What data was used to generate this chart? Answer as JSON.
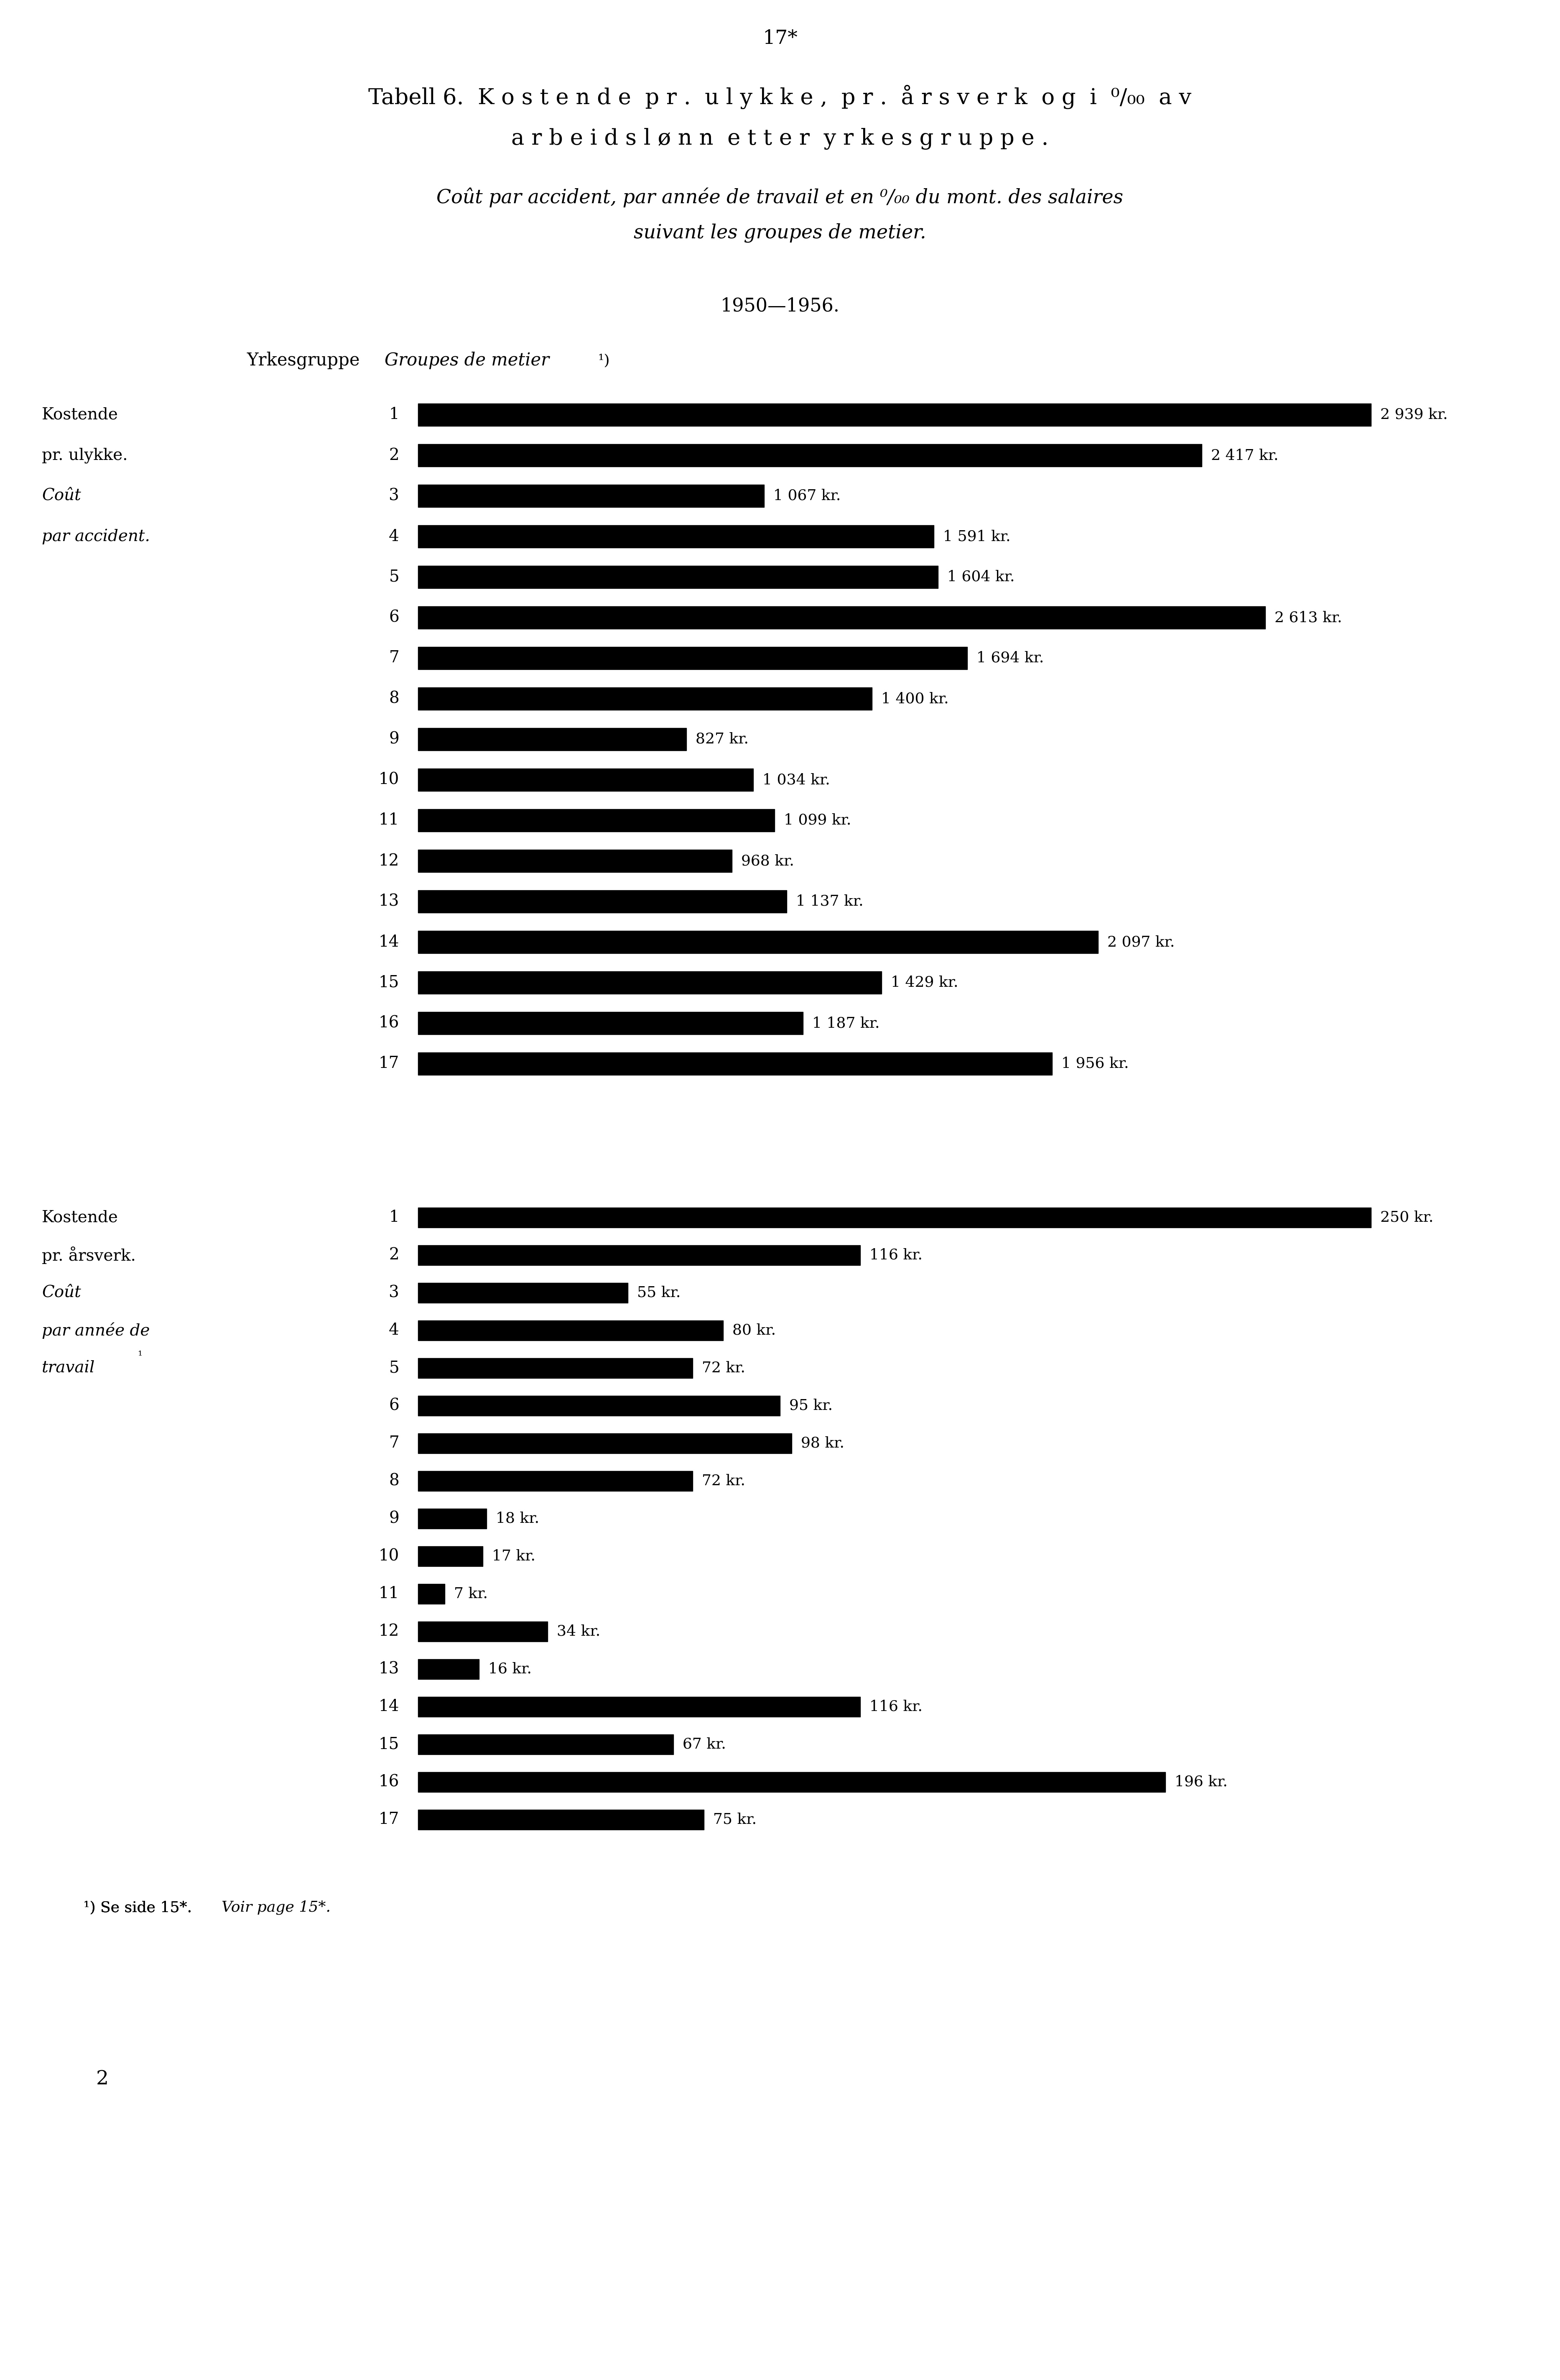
{
  "page_number": "17*",
  "title_line1": "Tabell 6.  K o s t e n d e  p r .  u l y k k e ,  p r .  å r s v e r k  o g  i  °/₀₀  a v",
  "title_line2": "a r b e i d s l ø n n  e t t e r  y r k e s g r u p p e .",
  "subtitle_line1": "Coût par accident, par année de travail et en °/₀₀ du mont. des salaires",
  "subtitle_line2": "suivant les groupes de metier.",
  "year_label": "1950—1956.",
  "chart1_ylabel_line1": "Kostende",
  "chart1_ylabel_line2": "pr. ulykke.",
  "chart1_ylabel_line3": "Coût",
  "chart1_ylabel_line4": "par accident.",
  "chart1_categories": [
    1,
    2,
    3,
    4,
    5,
    6,
    7,
    8,
    9,
    10,
    11,
    12,
    13,
    14,
    15,
    16,
    17
  ],
  "chart1_values": [
    2939,
    2417,
    1067,
    1591,
    1604,
    2613,
    1694,
    1400,
    827,
    1034,
    1099,
    968,
    1137,
    2097,
    1429,
    1187,
    1956
  ],
  "chart1_labels": [
    "2 939 kr.",
    "2 417 kr.",
    "1 067 kr.",
    "1 591 kr.",
    "1 604 kr.",
    "2 613 kr.",
    "1 694 kr.",
    "1 400 kr.",
    "827 kr.",
    "1 034 kr.",
    "1 099 kr.",
    "968 kr.",
    "1 137 kr.",
    "2 097 kr.",
    "1 429 kr.",
    "1 187 kr.",
    "1 956 kr."
  ],
  "chart2_ylabel_line1": "Kostende",
  "chart2_ylabel_line2": "pr. årsverk.",
  "chart2_ylabel_line3": "Coût",
  "chart2_ylabel_line4": "par année de",
  "chart2_ylabel_line5": "travail",
  "chart2_categories": [
    1,
    2,
    3,
    4,
    5,
    6,
    7,
    8,
    9,
    10,
    11,
    12,
    13,
    14,
    15,
    16,
    17
  ],
  "chart2_values": [
    250,
    116,
    55,
    80,
    72,
    95,
    98,
    72,
    18,
    17,
    7,
    34,
    16,
    116,
    67,
    196,
    75
  ],
  "chart2_labels": [
    "250 kr.",
    "116 kr.",
    "55 kr.",
    "80 kr.",
    "72 kr.",
    "95 kr.",
    "98 kr.",
    "72 kr.",
    "18 kr.",
    "17 kr.",
    "7 kr.",
    "34 kr.",
    "16 kr.",
    "116 kr.",
    "67 kr.",
    "196 kr.",
    "75 kr."
  ],
  "footnote_normal": "¹) Se side 15*. ",
  "footnote_italic": "Voir page 15*.",
  "bottom_number": "2",
  "bar_color": "#000000",
  "background_color": "#ffffff",
  "chart1_max": 2939,
  "chart2_max": 250
}
